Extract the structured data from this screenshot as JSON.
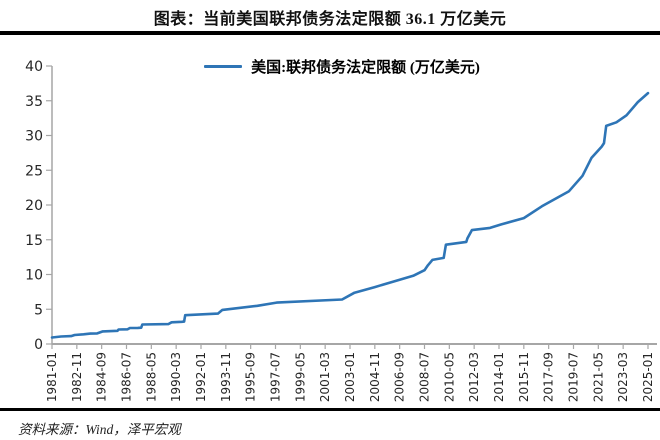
{
  "title": "图表：当前美国联邦债务法定限额 36.1 万亿美元",
  "source_note": "资料来源：Wind，泽平宏观",
  "legend_label": "美国:联邦债务法定限额 (万亿美元)",
  "colors": {
    "line": "#2E75B6",
    "axis": "#A6A6A6",
    "tick_text": "#262626",
    "rule": "#000000"
  },
  "chart_data": {
    "type": "line",
    "title": "图表：当前美国联邦债务法定限额 36.1 万亿美元",
    "ylabel": "",
    "xlabel": "",
    "ylim": [
      0,
      40
    ],
    "y_ticks": [
      0,
      5,
      10,
      15,
      20,
      25,
      30,
      35,
      40
    ],
    "grid": false,
    "legend_position": "top-center",
    "x_tick_interval_months": 22,
    "x_tick_labels": [
      "1981-01",
      "1982-11",
      "1984-09",
      "1986-07",
      "1988-05",
      "1990-03",
      "1992-01",
      "1993-11",
      "1995-09",
      "1997-07",
      "1999-05",
      "2001-03",
      "2003-01",
      "2004-11",
      "2006-09",
      "2008-07",
      "2010-05",
      "2012-03",
      "2014-01",
      "2015-11",
      "2017-09",
      "2019-07",
      "2021-05",
      "2023-03",
      "2025-01"
    ],
    "series": [
      {
        "name": "美国:联邦债务法定限额 (万亿美元)",
        "unit": "万亿美元",
        "points": [
          [
            "1981-01",
            0.94
          ],
          [
            "1981-09",
            1.08
          ],
          [
            "1982-06",
            1.14
          ],
          [
            "1982-09",
            1.29
          ],
          [
            "1983-05",
            1.39
          ],
          [
            "1983-11",
            1.49
          ],
          [
            "1984-05",
            1.52
          ],
          [
            "1984-10",
            1.82
          ],
          [
            "1985-11",
            1.9
          ],
          [
            "1985-12",
            2.08
          ],
          [
            "1986-08",
            2.11
          ],
          [
            "1986-10",
            2.3
          ],
          [
            "1987-05",
            2.32
          ],
          [
            "1987-08",
            2.35
          ],
          [
            "1987-09",
            2.8
          ],
          [
            "1989-08",
            2.87
          ],
          [
            "1989-11",
            3.12
          ],
          [
            "1990-08",
            3.2
          ],
          [
            "1990-10",
            3.23
          ],
          [
            "1990-11",
            4.15
          ],
          [
            "1993-04",
            4.37
          ],
          [
            "1993-08",
            4.9
          ],
          [
            "1996-03",
            5.5
          ],
          [
            "1997-08",
            5.95
          ],
          [
            "2002-06",
            6.4
          ],
          [
            "2003-05",
            7.38
          ],
          [
            "2004-11",
            8.18
          ],
          [
            "2006-03",
            8.97
          ],
          [
            "2007-09",
            9.82
          ],
          [
            "2008-07",
            10.62
          ],
          [
            "2008-10",
            11.32
          ],
          [
            "2009-02",
            12.1
          ],
          [
            "2009-12",
            12.39
          ],
          [
            "2010-02",
            14.29
          ],
          [
            "2011-08",
            14.69
          ],
          [
            "2011-09",
            15.19
          ],
          [
            "2012-01",
            16.39
          ],
          [
            "2013-05",
            16.7
          ],
          [
            "2014-03",
            17.21
          ],
          [
            "2015-11",
            18.11
          ],
          [
            "2017-03",
            19.81
          ],
          [
            "2019-03",
            21.99
          ],
          [
            "2020-03",
            24.2
          ],
          [
            "2020-11",
            26.8
          ],
          [
            "2021-08",
            28.4
          ],
          [
            "2021-10",
            28.9
          ],
          [
            "2021-12",
            31.38
          ],
          [
            "2022-09",
            31.9
          ],
          [
            "2023-06",
            32.9
          ],
          [
            "2024-04",
            34.8
          ],
          [
            "2025-01",
            36.1
          ]
        ]
      }
    ]
  }
}
